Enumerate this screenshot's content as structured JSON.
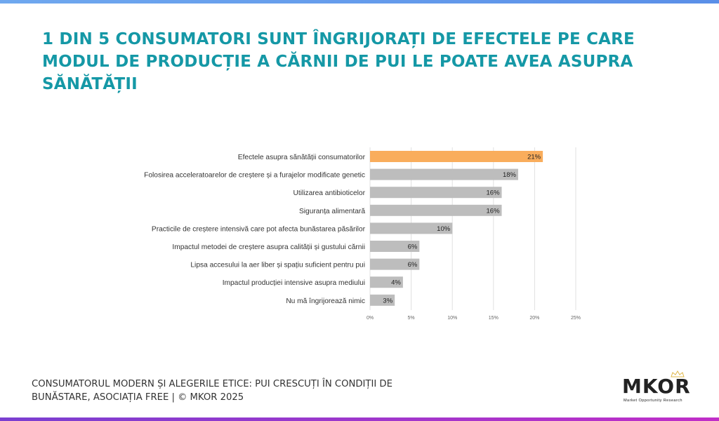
{
  "title": "1 DIN 5 CONSUMATORI SUNT ÎNGRIJORAȚI DE EFECTELE PE CARE MODUL DE PRODUCȚIE A CĂRNII DE PUI LE POATE AVEA ASUPRA SĂNĂTĂȚII",
  "footer": {
    "line1": "CONSUMATORUL MODERN ȘI ALEGERILE ETICE: PUI CRESCUȚI ÎN CONDIȚII DE",
    "line2": "BUNĂSTARE, ASOCIAȚIA FREE | © MKOR 2025"
  },
  "logo": {
    "name": "MKOR",
    "tagline": "Market Opportunity Research",
    "icon": "crown-icon"
  },
  "colors": {
    "title": "#1598a6",
    "highlight_bar": "#f9ad5c",
    "bar": "#bdbdbd"
  },
  "chart_data": {
    "type": "bar",
    "orientation": "horizontal",
    "categories": [
      "Efectele asupra sănătății consumatorilor",
      "Folosirea acceleratoarelor de creștere și a furajelor modificate genetic",
      "Utilizarea antibioticelor",
      "Siguranța alimentară",
      "Practicile de creștere intensivă care pot afecta bunăstarea păsărilor",
      "Impactul metodei de creștere asupra calității și gustului cărnii",
      "Lipsa accesului la aer liber și spațiu suficient pentru pui",
      "Impactul producției intensive asupra mediului",
      "Nu mă îngrijorează nimic"
    ],
    "values": [
      21,
      18,
      16,
      16,
      10,
      6,
      6,
      4,
      3
    ],
    "data_labels": [
      "21%",
      "18%",
      "16%",
      "16%",
      "10%",
      "6%",
      "6%",
      "4%",
      "3%"
    ],
    "highlight_index": 0,
    "xlim": [
      0,
      25
    ],
    "xticks": [
      "0%",
      "5%",
      "10%",
      "15%",
      "20%",
      "25%"
    ],
    "grid": true
  }
}
